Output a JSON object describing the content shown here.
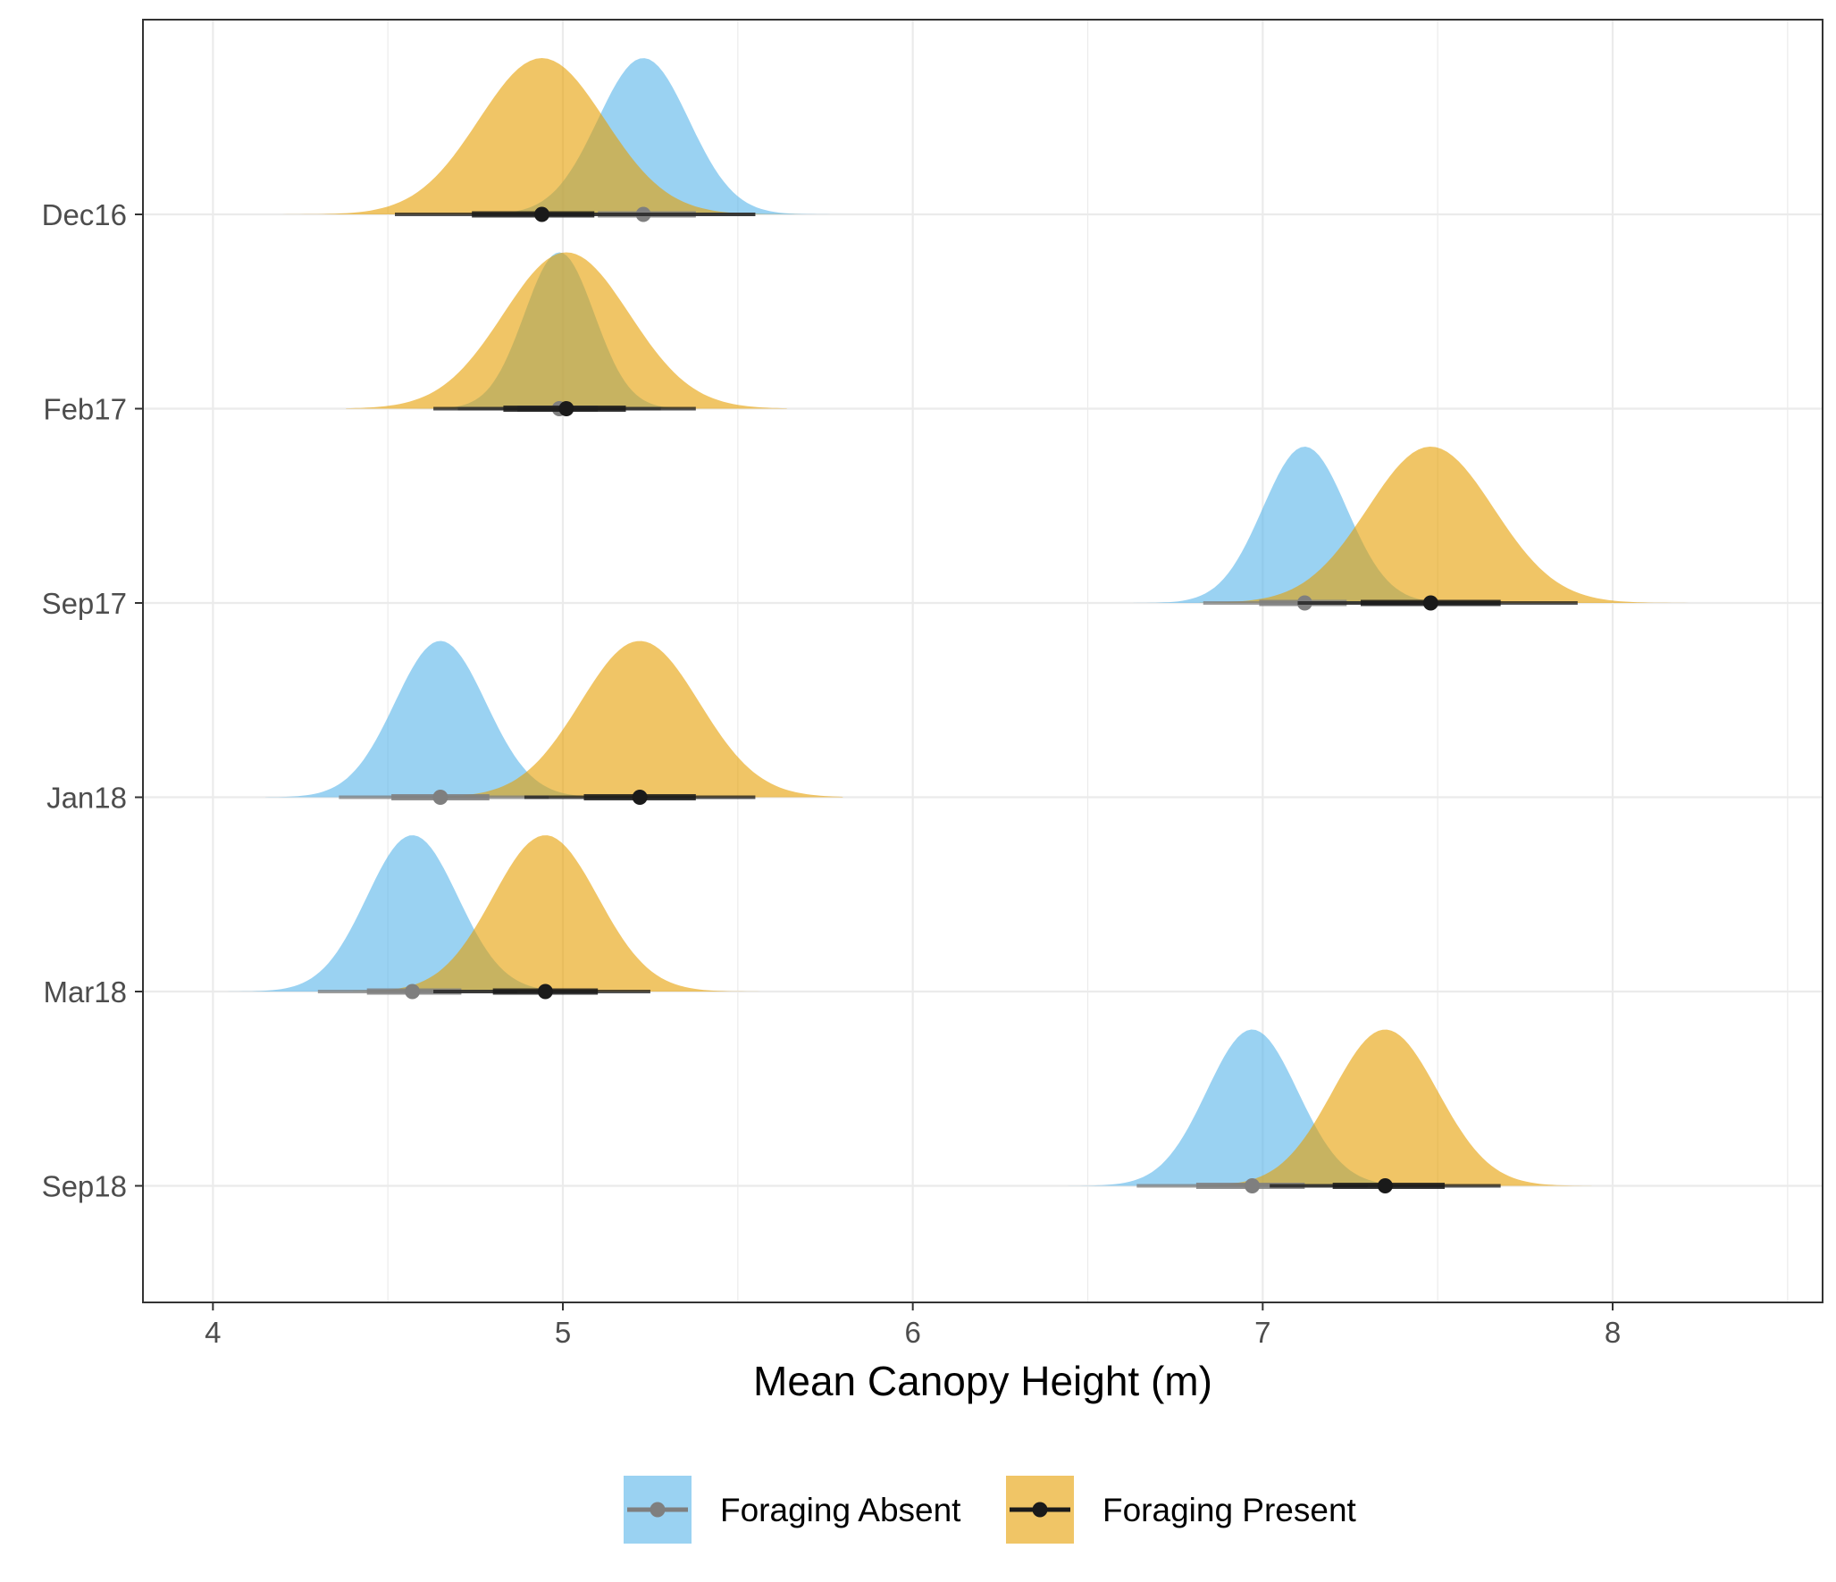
{
  "chart_data": {
    "type": "halfeye",
    "xlabel": "Mean Canopy Height (m)",
    "ylabel": "",
    "xlim": [
      3.8,
      8.6
    ],
    "x_ticks": [
      4,
      5,
      6,
      7,
      8
    ],
    "x_tick_labels": [
      "4",
      "5",
      "6",
      "7",
      "8"
    ],
    "categories": [
      "Dec16",
      "Feb17",
      "Sep17",
      "Jan18",
      "Mar18",
      "Sep18"
    ],
    "grid": true,
    "legend_position": "bottom",
    "colors": {
      "Foraging Absent": {
        "fill": "#56B4E9",
        "point": "#7f7f7f"
      },
      "Foraging Present": {
        "fill": "#E69F00",
        "point": "#1a1a1a"
      }
    },
    "series": [
      {
        "name": "Foraging Absent",
        "distributions": [
          {
            "category": "Dec16",
            "median": 5.23,
            "sd": 0.13,
            "ci66": [
              5.1,
              5.38
            ],
            "ci95": [
              4.92,
              5.55
            ],
            "min": 4.62,
            "max": 5.82
          },
          {
            "category": "Feb17",
            "median": 4.99,
            "sd": 0.1,
            "ci66": [
              4.87,
              5.1
            ],
            "ci95": [
              4.7,
              5.28
            ],
            "min": 4.52,
            "max": 5.46
          },
          {
            "category": "Sep17",
            "median": 7.12,
            "sd": 0.12,
            "ci66": [
              6.99,
              7.24
            ],
            "ci95": [
              6.83,
              7.42
            ],
            "min": 6.55,
            "max": 7.72
          },
          {
            "category": "Jan18",
            "median": 4.65,
            "sd": 0.13,
            "ci66": [
              4.51,
              4.79
            ],
            "ci95": [
              4.36,
              4.96
            ],
            "min": 4.15,
            "max": 5.2
          },
          {
            "category": "Mar18",
            "median": 4.57,
            "sd": 0.13,
            "ci66": [
              4.44,
              4.71
            ],
            "ci95": [
              4.3,
              4.87
            ],
            "min": 4.0,
            "max": 5.1
          },
          {
            "category": "Sep18",
            "median": 6.97,
            "sd": 0.13,
            "ci66": [
              6.81,
              7.12
            ],
            "ci95": [
              6.64,
              7.3
            ],
            "min": 6.4,
            "max": 7.56
          }
        ]
      },
      {
        "name": "Foraging Present",
        "distributions": [
          {
            "category": "Dec16",
            "median": 4.94,
            "sd": 0.18,
            "ci66": [
              4.74,
              5.09
            ],
            "ci95": [
              4.52,
              5.55
            ],
            "min": 4.18,
            "max": 5.7
          },
          {
            "category": "Feb17",
            "median": 5.01,
            "sd": 0.18,
            "ci66": [
              4.83,
              5.18
            ],
            "ci95": [
              4.63,
              5.38
            ],
            "min": 4.38,
            "max": 5.64
          },
          {
            "category": "Sep17",
            "median": 7.48,
            "sd": 0.18,
            "ci66": [
              7.28,
              7.68
            ],
            "ci95": [
              7.1,
              7.9
            ],
            "min": 6.82,
            "max": 8.3
          },
          {
            "category": "Jan18",
            "median": 5.22,
            "sd": 0.17,
            "ci66": [
              5.06,
              5.38
            ],
            "ci95": [
              4.89,
              5.55
            ],
            "min": 4.65,
            "max": 5.8
          },
          {
            "category": "Mar18",
            "median": 4.95,
            "sd": 0.15,
            "ci66": [
              4.8,
              5.1
            ],
            "ci95": [
              4.63,
              5.25
            ],
            "min": 4.4,
            "max": 5.62
          },
          {
            "category": "Sep18",
            "median": 7.35,
            "sd": 0.15,
            "ci66": [
              7.2,
              7.52
            ],
            "ci95": [
              7.02,
              7.68
            ],
            "min": 6.82,
            "max": 7.94
          }
        ]
      }
    ]
  }
}
